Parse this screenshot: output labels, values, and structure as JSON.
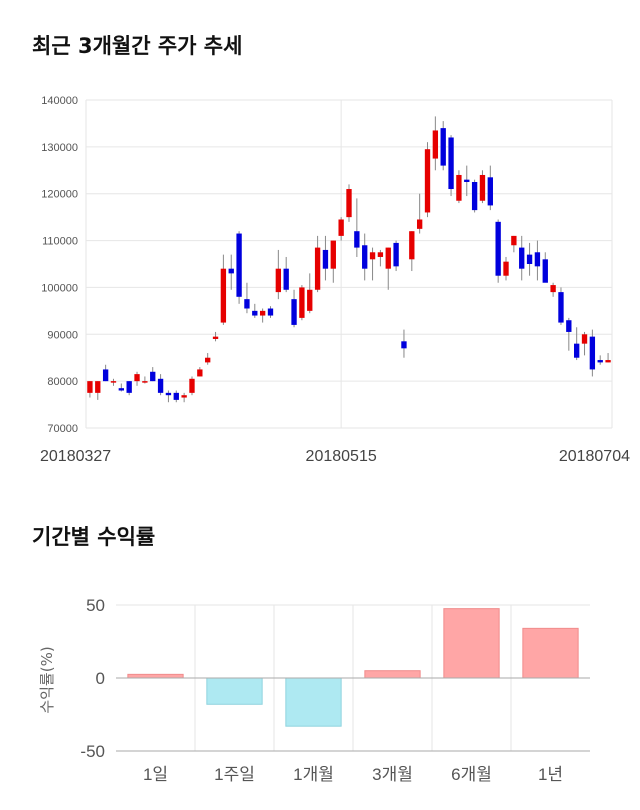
{
  "sections": {
    "price_title": "최근 3개월간 주가 추세",
    "returns_title": "기간별 수익률"
  },
  "colors": {
    "up": "#e60000",
    "down": "#0000dd",
    "positive_bar": "#ffa6a6",
    "negative_bar": "#aee9f2",
    "grid": "#e6e6e6"
  },
  "chart_data": [
    {
      "type": "candlestick",
      "title": "최근 3개월간 주가 추세",
      "ylim": [
        70000,
        140000
      ],
      "yticks": [
        70000,
        80000,
        90000,
        100000,
        110000,
        120000,
        130000,
        140000
      ],
      "xtick_labels": [
        {
          "index": 0,
          "label": "20180327"
        },
        {
          "index": 32,
          "label": "20180515"
        },
        {
          "index": 64,
          "label": "20180704"
        }
      ],
      "grid": true,
      "ohlc": [
        [
          77500,
          80000,
          76500,
          80000
        ],
        [
          77500,
          80000,
          76000,
          80000
        ],
        [
          82500,
          83500,
          80000,
          80000
        ],
        [
          80000,
          80500,
          79000,
          80000
        ],
        [
          78500,
          79500,
          77800,
          78000
        ],
        [
          80000,
          80000,
          77000,
          77500
        ],
        [
          80000,
          82000,
          79000,
          81500
        ],
        [
          80000,
          81000,
          79500,
          80000
        ],
        [
          82000,
          83000,
          80000,
          80000
        ],
        [
          80500,
          81500,
          77000,
          77500
        ],
        [
          77500,
          78000,
          75500,
          77000
        ],
        [
          77500,
          78000,
          75500,
          76000
        ],
        [
          76500,
          77500,
          75500,
          77000
        ],
        [
          77500,
          81000,
          77000,
          80500
        ],
        [
          81000,
          83000,
          81000,
          82500
        ],
        [
          84000,
          86000,
          83500,
          85000
        ],
        [
          89000,
          90500,
          88500,
          89500
        ],
        [
          92500,
          107000,
          92000,
          104000
        ],
        [
          104000,
          107000,
          99500,
          103000
        ],
        [
          111500,
          112000,
          96500,
          98000
        ],
        [
          97500,
          101000,
          94500,
          95500
        ],
        [
          95000,
          96500,
          93500,
          94000
        ],
        [
          94000,
          95500,
          92500,
          95000
        ],
        [
          95500,
          96000,
          93500,
          94000
        ],
        [
          99000,
          108000,
          97500,
          104000
        ],
        [
          104000,
          106500,
          99000,
          99500
        ],
        [
          97500,
          99500,
          91500,
          92000
        ],
        [
          93500,
          100500,
          93000,
          100000
        ],
        [
          95000,
          103000,
          94500,
          99500
        ],
        [
          99500,
          111000,
          99000,
          108500
        ],
        [
          108000,
          111000,
          101500,
          104000
        ],
        [
          104000,
          110000,
          101000,
          110000
        ],
        [
          111000,
          115000,
          110000,
          114500
        ],
        [
          115000,
          122000,
          114000,
          121000
        ],
        [
          112000,
          119000,
          106500,
          108500
        ],
        [
          109000,
          111500,
          101500,
          104000
        ],
        [
          106000,
          108500,
          101500,
          107500
        ],
        [
          106500,
          108000,
          104500,
          107500
        ],
        [
          104000,
          108500,
          99500,
          108500
        ],
        [
          109500,
          110000,
          103500,
          104500
        ],
        [
          88500,
          91000,
          85000,
          87000
        ],
        [
          106000,
          112000,
          103500,
          112000
        ],
        [
          112500,
          120000,
          111500,
          114500
        ],
        [
          116000,
          131000,
          115000,
          129500
        ],
        [
          127500,
          136500,
          125000,
          133500
        ],
        [
          134000,
          135500,
          125000,
          126000
        ],
        [
          132000,
          132500,
          119500,
          121000
        ],
        [
          118500,
          125000,
          118000,
          124000
        ],
        [
          123000,
          126000,
          119500,
          122500
        ],
        [
          122500,
          123000,
          116000,
          116500
        ],
        [
          118500,
          125000,
          118000,
          124000
        ],
        [
          123500,
          126000,
          116500,
          117500
        ],
        [
          114000,
          114500,
          101000,
          102500
        ],
        [
          102500,
          106500,
          101500,
          105500
        ],
        [
          109000,
          111000,
          107500,
          111000
        ],
        [
          108500,
          111000,
          101500,
          104000
        ],
        [
          107000,
          109500,
          102500,
          105000
        ],
        [
          107500,
          110000,
          101500,
          104500
        ],
        [
          106000,
          107500,
          101500,
          101000
        ],
        [
          99000,
          101000,
          98000,
          100500
        ],
        [
          99000,
          100000,
          92000,
          92500
        ],
        [
          93000,
          93500,
          86500,
          90500
        ],
        [
          88000,
          91500,
          84500,
          85000
        ],
        [
          88000,
          90500,
          85500,
          90000
        ],
        [
          89500,
          91000,
          81000,
          82500
        ],
        [
          84500,
          85500,
          83500,
          84000
        ],
        [
          84000,
          86000,
          84000,
          84500
        ]
      ]
    },
    {
      "type": "bar",
      "title": "기간별 수익률",
      "ylabel": "수익률(%)",
      "ylim": [
        -50,
        50
      ],
      "yticks": [
        -50,
        0,
        50
      ],
      "categories": [
        "1일",
        "1주일",
        "1개월",
        "3개월",
        "6개월",
        "1년"
      ],
      "values": [
        2.5,
        -18,
        -33,
        5,
        47.5,
        34
      ]
    }
  ]
}
